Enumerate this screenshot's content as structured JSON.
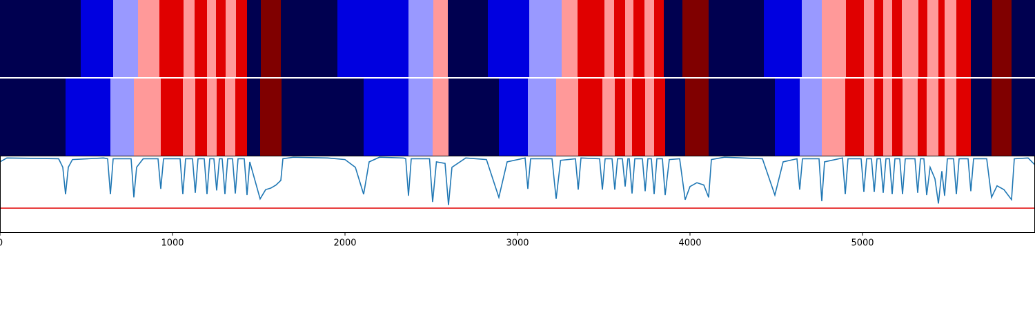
{
  "chart_data": [
    {
      "type": "segments",
      "xlim": [
        0,
        6000
      ],
      "bounds": [
        0,
        468,
        656,
        800,
        924,
        1064,
        1128,
        1200,
        1252,
        1308,
        1368,
        1432,
        1512,
        1628,
        1956,
        2368,
        2512,
        2596,
        2828,
        3068,
        3256,
        3348,
        3504,
        3560,
        3624,
        3672,
        3736,
        3792,
        3848,
        3956,
        4108,
        4428,
        4648,
        4764,
        4904,
        5008,
        5068,
        5120,
        5172,
        5228,
        5324,
        5376,
        5440,
        5476,
        5544,
        5628,
        5752,
        5864,
        6000
      ],
      "colors": [
        "#000050",
        "#0000e0",
        "#9999ff",
        "#ff9999",
        "#e00000",
        "#ff9999",
        "#e00000",
        "#ff9999",
        "#e00000",
        "#ff9999",
        "#e00000",
        "#000050",
        "#800000",
        "#000050",
        "#0000e0",
        "#9999ff",
        "#ff9999",
        "#000050",
        "#0000e0",
        "#9999ff",
        "#ff9999",
        "#e00000",
        "#ff9999",
        "#e00000",
        "#ff9999",
        "#e00000",
        "#ff9999",
        "#e00000",
        "#000050",
        "#800000",
        "#000050",
        "#0000e0",
        "#9999ff",
        "#ff9999",
        "#e00000",
        "#ff9999",
        "#e00000",
        "#ff9999",
        "#e00000",
        "#ff9999",
        "#e00000",
        "#ff9999",
        "#e00000",
        "#ff9999",
        "#e00000",
        "#000050",
        "#800000",
        "#000050"
      ]
    },
    {
      "type": "segments",
      "xlim": [
        0,
        6000
      ],
      "bounds": [
        0,
        380,
        640,
        776,
        932,
        1060,
        1132,
        1200,
        1256,
        1304,
        1364,
        1432,
        1508,
        1632,
        2108,
        2368,
        2508,
        2600,
        2892,
        3060,
        3224,
        3352,
        3492,
        3564,
        3624,
        3664,
        3740,
        3792,
        3856,
        3972,
        4108,
        4492,
        4636,
        4764,
        4900,
        5008,
        5068,
        5120,
        5172,
        5232,
        5320,
        5372,
        5440,
        5476,
        5544,
        5628,
        5748,
        5864,
        6000
      ],
      "colors": [
        "#000050",
        "#0000e0",
        "#9999ff",
        "#ff9999",
        "#e00000",
        "#ff9999",
        "#e00000",
        "#ff9999",
        "#e00000",
        "#ff9999",
        "#e00000",
        "#000050",
        "#800000",
        "#000050",
        "#0000e0",
        "#9999ff",
        "#ff9999",
        "#000050",
        "#0000e0",
        "#9999ff",
        "#ff9999",
        "#e00000",
        "#ff9999",
        "#e00000",
        "#ff9999",
        "#e00000",
        "#ff9999",
        "#e00000",
        "#000050",
        "#800000",
        "#000050",
        "#0000e0",
        "#9999ff",
        "#ff9999",
        "#e00000",
        "#ff9999",
        "#e00000",
        "#ff9999",
        "#e00000",
        "#ff9999",
        "#e00000",
        "#ff9999",
        "#e00000",
        "#ff9999",
        "#e00000",
        "#000050",
        "#800000",
        "#000050"
      ]
    },
    {
      "type": "line",
      "xlim": [
        0,
        6000
      ],
      "ylim": [
        0,
        1
      ],
      "xticks": [
        0,
        1000,
        2000,
        3000,
        4000,
        5000
      ],
      "color": "#1f77b4",
      "threshold": {
        "value": 0.32,
        "color": "#e00000"
      },
      "x": [
        0,
        40,
        340,
        364,
        380,
        396,
        420,
        600,
        624,
        640,
        656,
        760,
        776,
        792,
        830,
        916,
        932,
        948,
        1044,
        1060,
        1076,
        1116,
        1132,
        1148,
        1184,
        1200,
        1216,
        1240,
        1256,
        1272,
        1288,
        1304,
        1320,
        1348,
        1364,
        1380,
        1416,
        1432,
        1448,
        1508,
        1540,
        1570,
        1600,
        1628,
        1640,
        1700,
        1900,
        2000,
        2060,
        2108,
        2140,
        2200,
        2340,
        2352,
        2368,
        2384,
        2490,
        2508,
        2530,
        2580,
        2600,
        2620,
        2700,
        2820,
        2892,
        2940,
        3044,
        3060,
        3076,
        3200,
        3224,
        3250,
        3336,
        3352,
        3368,
        3476,
        3492,
        3508,
        3548,
        3564,
        3580,
        3608,
        3624,
        3640,
        3648,
        3664,
        3680,
        3724,
        3740,
        3756,
        3776,
        3792,
        3808,
        3840,
        3856,
        3880,
        3940,
        3972,
        4000,
        4040,
        4080,
        4108,
        4124,
        4200,
        4420,
        4492,
        4540,
        4620,
        4636,
        4652,
        4748,
        4764,
        4780,
        4884,
        4900,
        4916,
        4992,
        5008,
        5024,
        5052,
        5068,
        5084,
        5104,
        5120,
        5136,
        5156,
        5172,
        5188,
        5216,
        5232,
        5248,
        5304,
        5320,
        5336,
        5356,
        5372,
        5392,
        5420,
        5440,
        5460,
        5476,
        5492,
        5528,
        5544,
        5560,
        5612,
        5628,
        5644,
        5720,
        5748,
        5780,
        5820,
        5864,
        5880,
        5960,
        6000
      ],
      "values": [
        0.92,
        0.97,
        0.96,
        0.85,
        0.5,
        0.85,
        0.95,
        0.97,
        0.96,
        0.5,
        0.96,
        0.96,
        0.46,
        0.85,
        0.96,
        0.96,
        0.57,
        0.96,
        0.96,
        0.5,
        0.96,
        0.96,
        0.52,
        0.96,
        0.96,
        0.5,
        0.96,
        0.96,
        0.55,
        0.96,
        0.96,
        0.5,
        0.96,
        0.96,
        0.51,
        0.96,
        0.96,
        0.49,
        0.92,
        0.44,
        0.56,
        0.58,
        0.62,
        0.68,
        0.96,
        0.98,
        0.97,
        0.95,
        0.85,
        0.5,
        0.92,
        0.98,
        0.97,
        0.96,
        0.48,
        0.96,
        0.96,
        0.4,
        0.92,
        0.9,
        0.36,
        0.85,
        0.97,
        0.95,
        0.46,
        0.92,
        0.97,
        0.57,
        0.96,
        0.96,
        0.44,
        0.94,
        0.96,
        0.56,
        0.97,
        0.96,
        0.56,
        0.96,
        0.96,
        0.56,
        0.96,
        0.96,
        0.6,
        0.96,
        0.96,
        0.51,
        0.96,
        0.96,
        0.54,
        0.96,
        0.96,
        0.5,
        0.96,
        0.96,
        0.49,
        0.95,
        0.96,
        0.43,
        0.6,
        0.65,
        0.62,
        0.46,
        0.95,
        0.98,
        0.96,
        0.49,
        0.92,
        0.96,
        0.56,
        0.96,
        0.96,
        0.41,
        0.92,
        0.97,
        0.5,
        0.96,
        0.96,
        0.53,
        0.96,
        0.96,
        0.53,
        0.96,
        0.96,
        0.52,
        0.96,
        0.96,
        0.5,
        0.96,
        0.96,
        0.5,
        0.96,
        0.96,
        0.52,
        0.96,
        0.96,
        0.49,
        0.85,
        0.7,
        0.38,
        0.8,
        0.48,
        0.96,
        0.96,
        0.5,
        0.96,
        0.96,
        0.54,
        0.96,
        0.96,
        0.46,
        0.61,
        0.56,
        0.43,
        0.96,
        0.97,
        0.88
      ]
    }
  ]
}
